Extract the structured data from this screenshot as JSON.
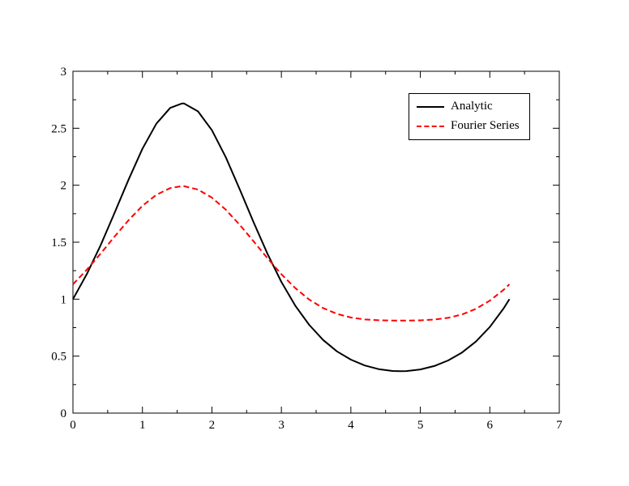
{
  "page": {
    "background": "#ffffff",
    "frame_color": "#000000",
    "text_color": "#000000"
  },
  "chart_data": {
    "type": "line",
    "title": "",
    "xlabel": "",
    "ylabel": "",
    "xlim": [
      0,
      7
    ],
    "ylim": [
      0,
      3
    ],
    "x_major_step": 1,
    "x_minor_step": 0.5,
    "y_major_step": 0.5,
    "y_minor_step": 0.25,
    "grid": false,
    "legend": {
      "position": "top-right",
      "border_color": "#000000",
      "background": "#ffffff"
    },
    "x_tick_labels": [
      "0",
      "1",
      "2",
      "3",
      "4",
      "5",
      "6",
      "7"
    ],
    "y_tick_labels": [
      "0",
      "0.5",
      "1",
      "1.5",
      "2",
      "2.5",
      "3"
    ],
    "x": [
      0,
      0.2,
      0.4,
      0.6,
      0.8,
      1,
      1.2,
      1.4,
      1.571,
      1.6,
      1.8,
      2,
      2.2,
      2.4,
      2.6,
      2.8,
      3,
      3.2,
      3.4,
      3.6,
      3.8,
      4,
      4.2,
      4.4,
      4.6,
      4.712,
      4.8,
      5,
      5.2,
      5.4,
      5.6,
      5.8,
      6,
      6.2,
      6.283
    ],
    "series": [
      {
        "name": "Analytic",
        "color": "#000000",
        "line_style": "solid",
        "line_width": 2,
        "y": [
          1.0,
          1.22,
          1.476,
          1.759,
          2.049,
          2.32,
          2.54,
          2.679,
          2.718,
          2.717,
          2.648,
          2.483,
          2.245,
          1.965,
          1.674,
          1.398,
          1.152,
          0.943,
          0.775,
          0.642,
          0.542,
          0.469,
          0.418,
          0.386,
          0.37,
          0.368,
          0.369,
          0.383,
          0.413,
          0.462,
          0.532,
          0.628,
          0.756,
          0.92,
          1.0
        ]
      },
      {
        "name": "Fourier Series",
        "color": "#ff0000",
        "line_style": "dashed",
        "line_width": 2,
        "y": [
          1.13,
          1.258,
          1.401,
          1.55,
          1.693,
          1.819,
          1.916,
          1.975,
          1.992,
          1.991,
          1.962,
          1.891,
          1.785,
          1.653,
          1.507,
          1.359,
          1.219,
          1.097,
          0.997,
          0.922,
          0.871,
          0.839,
          0.822,
          0.815,
          0.812,
          0.812,
          0.812,
          0.814,
          0.821,
          0.836,
          0.866,
          0.915,
          0.987,
          1.083,
          1.13
        ]
      }
    ]
  }
}
